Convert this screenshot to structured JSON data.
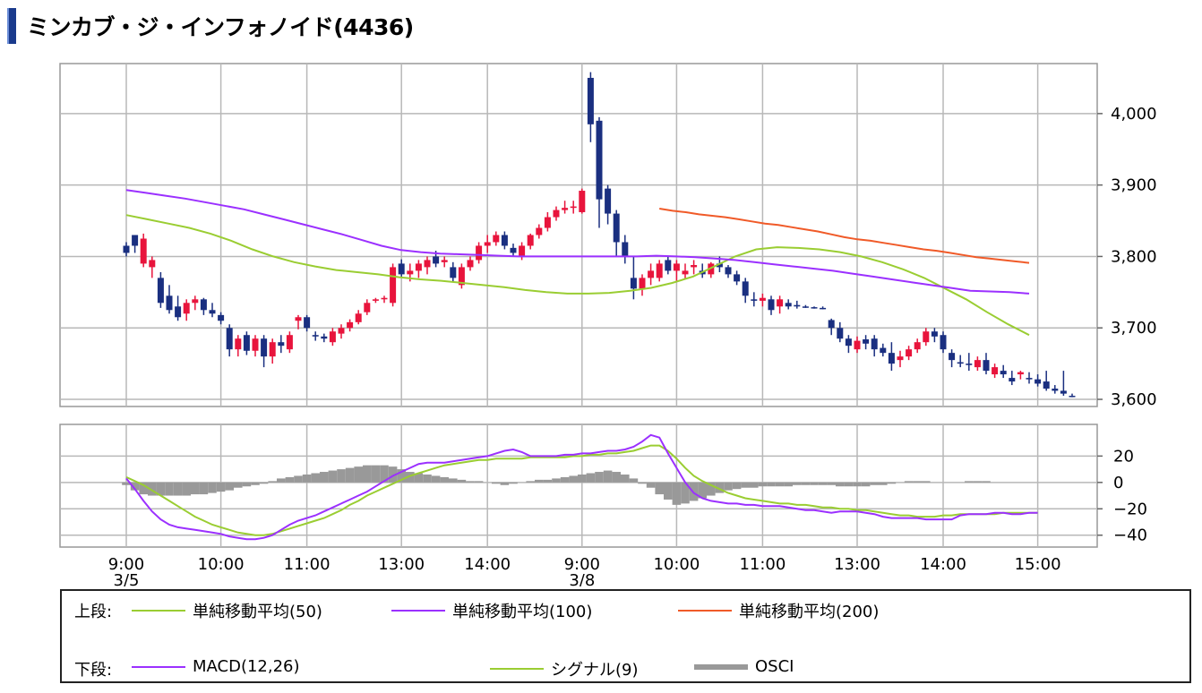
{
  "title": "ミンカブ・ジ・インフォノイド(4436)",
  "colors": {
    "up": "#e8143c",
    "down": "#1a2f80",
    "ma50": "#9acd32",
    "ma100": "#9b30ff",
    "ma200": "#f05a28",
    "macd": "#9b30ff",
    "signal": "#9acd32",
    "osci": "#999999",
    "grid": "#b8b8b8",
    "frame": "#999999"
  },
  "legend": {
    "upper_label": "上段:",
    "lower_label": "下段:",
    "ma50": "単純移動平均(50)",
    "ma100": "単純移動平均(100)",
    "ma200": "単純移動平均(200)",
    "macd": "MACD(12,26)",
    "signal": "シグナル(9)",
    "osci": "OSCI"
  },
  "chart_data": [
    {
      "type": "candlestick",
      "panel": "price",
      "y_ticks": [
        "4,000",
        "3,900",
        "3,800",
        "3,700",
        "3,600"
      ],
      "y_tick_values": [
        4000,
        3900,
        3800,
        3700,
        3600
      ],
      "ylim": [
        3590,
        4070
      ],
      "x_ticks": [
        "9:00",
        "10:00",
        "11:00",
        "13:00",
        "14:00",
        "9:00",
        "10:00",
        "11:00",
        "13:00",
        "14:00",
        "15:00"
      ],
      "x_tick_positions": [
        0,
        11,
        21,
        32,
        42,
        53,
        64,
        74,
        85,
        95,
        106
      ],
      "date_labels": [
        {
          "at": 0,
          "label": "3/5"
        },
        {
          "at": 53,
          "label": "3/8"
        }
      ],
      "candles": [
        [
          3815,
          3820,
          3800,
          3805
        ],
        [
          3830,
          3830,
          3805,
          3815
        ],
        [
          3790,
          3832,
          3785,
          3825
        ],
        [
          3785,
          3800,
          3770,
          3795
        ],
        [
          3770,
          3778,
          3728,
          3735
        ],
        [
          3745,
          3760,
          3720,
          3725
        ],
        [
          3730,
          3745,
          3710,
          3715
        ],
        [
          3720,
          3740,
          3710,
          3735
        ],
        [
          3735,
          3745,
          3725,
          3740
        ],
        [
          3740,
          3742,
          3718,
          3725
        ],
        [
          3725,
          3735,
          3715,
          3720
        ],
        [
          3718,
          3722,
          3705,
          3710
        ],
        [
          3700,
          3705,
          3660,
          3670
        ],
        [
          3670,
          3690,
          3660,
          3685
        ],
        [
          3690,
          3695,
          3662,
          3668
        ],
        [
          3668,
          3690,
          3660,
          3685
        ],
        [
          3685,
          3690,
          3645,
          3660
        ],
        [
          3660,
          3685,
          3650,
          3680
        ],
        [
          3680,
          3690,
          3665,
          3675
        ],
        [
          3670,
          3695,
          3665,
          3690
        ],
        [
          3710,
          3718,
          3698,
          3715
        ],
        [
          3715,
          3718,
          3695,
          3700
        ],
        [
          3690,
          3695,
          3682,
          3688
        ],
        [
          3688,
          3692,
          3680,
          3685
        ],
        [
          3680,
          3700,
          3675,
          3695
        ],
        [
          3692,
          3705,
          3685,
          3700
        ],
        [
          3700,
          3712,
          3695,
          3708
        ],
        [
          3708,
          3725,
          3705,
          3720
        ],
        [
          3722,
          3740,
          3718,
          3735
        ],
        [
          3738,
          3742,
          3735,
          3740
        ],
        [
          3740,
          3745,
          3735,
          3742
        ],
        [
          3735,
          3790,
          3730,
          3785
        ],
        [
          3790,
          3796,
          3770,
          3775
        ],
        [
          3775,
          3790,
          3765,
          3780
        ],
        [
          3780,
          3795,
          3770,
          3790
        ],
        [
          3785,
          3800,
          3775,
          3795
        ],
        [
          3800,
          3808,
          3785,
          3790
        ],
        [
          3792,
          3800,
          3785,
          3795
        ],
        [
          3785,
          3792,
          3765,
          3770
        ],
        [
          3760,
          3790,
          3755,
          3785
        ],
        [
          3785,
          3800,
          3780,
          3795
        ],
        [
          3795,
          3820,
          3790,
          3815
        ],
        [
          3815,
          3830,
          3805,
          3820
        ],
        [
          3820,
          3835,
          3815,
          3830
        ],
        [
          3830,
          3835,
          3810,
          3815
        ],
        [
          3812,
          3818,
          3800,
          3805
        ],
        [
          3800,
          3820,
          3795,
          3815
        ],
        [
          3815,
          3832,
          3810,
          3830
        ],
        [
          3830,
          3845,
          3825,
          3840
        ],
        [
          3840,
          3862,
          3835,
          3855
        ],
        [
          3855,
          3870,
          3850,
          3865
        ],
        [
          3865,
          3878,
          3860,
          3868
        ],
        [
          3868,
          3878,
          3860,
          3870
        ],
        [
          3862,
          3895,
          3860,
          3892
        ],
        [
          4050,
          4058,
          3960,
          3985
        ],
        [
          3990,
          3995,
          3840,
          3880
        ],
        [
          3895,
          3900,
          3845,
          3860
        ],
        [
          3860,
          3865,
          3800,
          3820
        ],
        [
          3820,
          3830,
          3790,
          3800
        ],
        [
          3770,
          3800,
          3740,
          3755
        ],
        [
          3755,
          3775,
          3745,
          3770
        ],
        [
          3770,
          3790,
          3760,
          3780
        ],
        [
          3770,
          3795,
          3765,
          3790
        ],
        [
          3795,
          3800,
          3775,
          3780
        ],
        [
          3780,
          3795,
          3765,
          3790
        ],
        [
          3775,
          3790,
          3768,
          3780
        ],
        [
          3785,
          3795,
          3775,
          3788
        ],
        [
          3780,
          3790,
          3770,
          3775
        ],
        [
          3775,
          3792,
          3770,
          3790
        ],
        [
          3790,
          3800,
          3778,
          3785
        ],
        [
          3785,
          3788,
          3770,
          3775
        ],
        [
          3775,
          3780,
          3760,
          3765
        ],
        [
          3765,
          3770,
          3735,
          3745
        ],
        [
          3740,
          3750,
          3730,
          3738
        ],
        [
          3738,
          3748,
          3730,
          3742
        ],
        [
          3740,
          3745,
          3718,
          3725
        ],
        [
          3730,
          3745,
          3720,
          3740
        ],
        [
          3735,
          3740,
          3726,
          3730
        ],
        [
          3732,
          3738,
          3727,
          3730
        ],
        [
          3730,
          3732,
          3728,
          3729
        ],
        [
          3729,
          3730,
          3727,
          3728
        ],
        [
          3728,
          3730,
          3726,
          3727
        ],
        [
          3711,
          3713,
          3690,
          3700
        ],
        [
          3700,
          3708,
          3680,
          3685
        ],
        [
          3685,
          3690,
          3665,
          3675
        ],
        [
          3670,
          3688,
          3665,
          3682
        ],
        [
          3684,
          3690,
          3670,
          3678
        ],
        [
          3685,
          3690,
          3660,
          3670
        ],
        [
          3672,
          3678,
          3660,
          3665
        ],
        [
          3665,
          3680,
          3640,
          3650
        ],
        [
          3655,
          3668,
          3645,
          3660
        ],
        [
          3660,
          3675,
          3655,
          3670
        ],
        [
          3670,
          3685,
          3665,
          3680
        ],
        [
          3680,
          3700,
          3675,
          3695
        ],
        [
          3695,
          3700,
          3680,
          3688
        ],
        [
          3690,
          3695,
          3665,
          3670
        ],
        [
          3665,
          3670,
          3645,
          3655
        ],
        [
          3652,
          3662,
          3645,
          3650
        ],
        [
          3650,
          3665,
          3640,
          3648
        ],
        [
          3645,
          3660,
          3640,
          3655
        ],
        [
          3655,
          3665,
          3635,
          3640
        ],
        [
          3635,
          3650,
          3630,
          3645
        ],
        [
          3640,
          3648,
          3630,
          3635
        ],
        [
          3630,
          3640,
          3620,
          3625
        ],
        [
          3635,
          3640,
          3628,
          3638
        ],
        [
          3630,
          3638,
          3622,
          3628
        ],
        [
          3628,
          3635,
          3618,
          3622
        ],
        [
          3625,
          3640,
          3612,
          3615
        ],
        [
          3615,
          3620,
          3608,
          3612
        ],
        [
          3612,
          3640,
          3605,
          3608
        ],
        [
          3605,
          3608,
          3603,
          3604
        ]
      ],
      "series": [
        {
          "name": "単純移動平均(50)",
          "start": 0,
          "values": [
            3858,
            3852,
            3846,
            3840,
            3832,
            3822,
            3810,
            3800,
            3792,
            3786,
            3781,
            3778,
            3775,
            3771,
            3768,
            3766,
            3763,
            3760,
            3757,
            3753,
            3750,
            3748,
            3748,
            3749,
            3752,
            3756,
            3763,
            3772,
            3786,
            3800,
            3810,
            3813,
            3812,
            3810,
            3806,
            3800,
            3792,
            3782,
            3770,
            3755,
            3740,
            3722,
            3705,
            3690
          ]
        },
        {
          "name": "単純移動平均(100)",
          "start": 0,
          "values": [
            3893,
            3889,
            3885,
            3881,
            3876,
            3871,
            3866,
            3859,
            3852,
            3845,
            3838,
            3831,
            3823,
            3815,
            3809,
            3806,
            3804,
            3803,
            3802,
            3801,
            3800,
            3800,
            3800,
            3800,
            3800,
            3800,
            3800,
            3801,
            3800,
            3799,
            3797,
            3795,
            3792,
            3789,
            3786,
            3783,
            3780,
            3776,
            3772,
            3768,
            3764,
            3760,
            3756,
            3752,
            3751,
            3750,
            3748
          ]
        },
        {
          "name": "単純移動平均(200)",
          "start": 62,
          "values": [
            3867,
            3864,
            3862,
            3859,
            3857,
            3855,
            3852,
            3849,
            3846,
            3844,
            3841,
            3838,
            3835,
            3831,
            3827,
            3824,
            3822,
            3819,
            3816,
            3813,
            3810,
            3808,
            3805,
            3802,
            3799,
            3797,
            3795,
            3793,
            3791
          ]
        }
      ]
    },
    {
      "type": "line",
      "panel": "macd",
      "y_ticks": [
        "20",
        "0",
        "−20",
        "−40"
      ],
      "y_tick_values": [
        20,
        0,
        -20,
        -40
      ],
      "ylim": [
        -49,
        44
      ],
      "series": [
        {
          "name": "MACD(12,26)",
          "values": [
            3,
            -5,
            -14,
            -22,
            -28,
            -32,
            -34,
            -35,
            -36,
            -37,
            -38,
            -39,
            -41,
            -42,
            -43,
            -43,
            -42,
            -40,
            -36,
            -32,
            -29,
            -27,
            -25,
            -22,
            -19,
            -16,
            -13,
            -10,
            -7,
            -3,
            1,
            5,
            8,
            11,
            14,
            15,
            15,
            15,
            16,
            17,
            18,
            19,
            20,
            22,
            24,
            25,
            23,
            20,
            20,
            20,
            20,
            21,
            21,
            22,
            22,
            23,
            24,
            24,
            25,
            27,
            31,
            36,
            34,
            22,
            11,
            0,
            -8,
            -12,
            -14,
            -15,
            -16,
            -16,
            -17,
            -17,
            -18,
            -18,
            -18,
            -19,
            -20,
            -21,
            -21,
            -22,
            -23,
            -22,
            -22,
            -22,
            -23,
            -24,
            -26,
            -27,
            -27,
            -27,
            -27,
            -28,
            -28,
            -28,
            -28,
            -25,
            -24,
            -24,
            -24,
            -23,
            -23,
            -24,
            -24,
            -23,
            -23
          ]
        },
        {
          "name": "シグナル(9)",
          "values": [
            4,
            1,
            -2,
            -6,
            -10,
            -14,
            -18,
            -22,
            -26,
            -29,
            -32,
            -34,
            -36,
            -38,
            -39,
            -40,
            -40,
            -39,
            -37,
            -35,
            -33,
            -31,
            -29,
            -27,
            -24,
            -21,
            -17,
            -14,
            -10,
            -7,
            -4,
            -1,
            2,
            5,
            7,
            9,
            11,
            13,
            14,
            15,
            16,
            17,
            17,
            18,
            18,
            18,
            18,
            19,
            19,
            19,
            19,
            19,
            20,
            20,
            21,
            21,
            22,
            22,
            23,
            24,
            26,
            28,
            28,
            24,
            18,
            11,
            5,
            1,
            -2,
            -5,
            -8,
            -10,
            -12,
            -13,
            -14,
            -15,
            -16,
            -16,
            -17,
            -17,
            -18,
            -19,
            -19,
            -20,
            -20,
            -21,
            -21,
            -22,
            -23,
            -24,
            -25,
            -25,
            -26,
            -26,
            -26,
            -25,
            -25,
            -24,
            -24,
            -24,
            -24,
            -24,
            -23,
            -23,
            -23,
            -23,
            -23
          ]
        },
        {
          "name": "OSCI",
          "type": "bar",
          "values": [
            -2,
            -6,
            -9,
            -10,
            -10,
            -10,
            -10,
            -10,
            -9,
            -9,
            -8,
            -7,
            -6,
            -4,
            -3,
            -2,
            -1,
            1,
            3,
            4,
            5,
            6,
            7,
            8,
            9,
            10,
            11,
            12,
            13,
            13,
            13,
            12,
            10,
            8,
            7,
            6,
            5,
            4,
            3,
            2,
            1,
            1,
            0,
            -1,
            -2,
            -1,
            0,
            1,
            2,
            2,
            3,
            4,
            5,
            6,
            7,
            8,
            9,
            8,
            6,
            3,
            -1,
            -4,
            -9,
            -13,
            -17,
            -16,
            -14,
            -12,
            -10,
            -8,
            -6,
            -5,
            -4,
            -4,
            -3,
            -3,
            -3,
            -3,
            -2,
            -2,
            -2,
            -2,
            -2,
            -3,
            -3,
            -3,
            -3,
            -2,
            -2,
            -1,
            0,
            1,
            1,
            1,
            0,
            0,
            0,
            0,
            1,
            1,
            1,
            0,
            0,
            0,
            0,
            0,
            0
          ]
        }
      ]
    }
  ]
}
